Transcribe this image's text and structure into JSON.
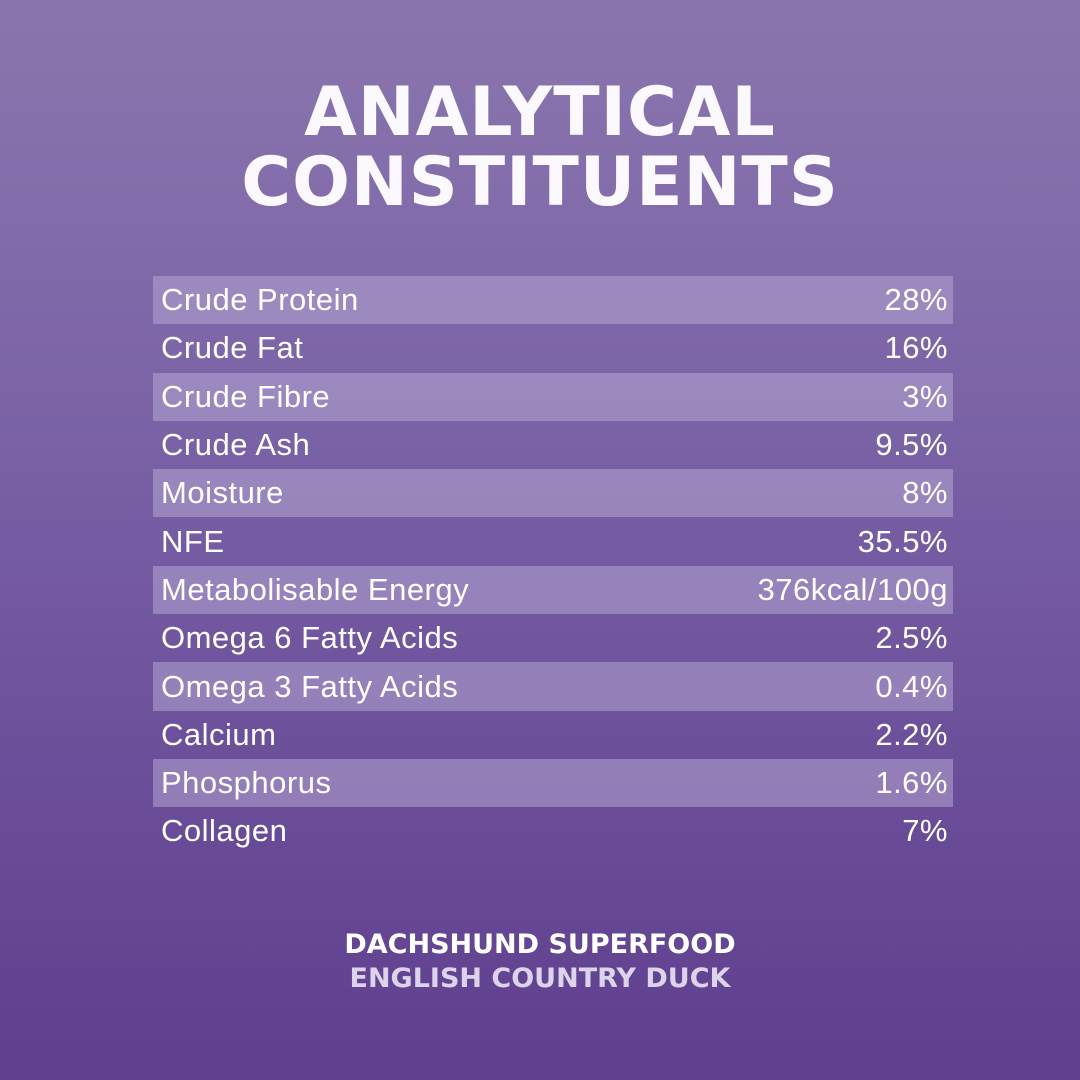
{
  "title": {
    "line1": "ANALYTICAL",
    "line2": "CONSTITUENTS"
  },
  "rows": [
    {
      "label": "Crude Protein",
      "value": "28%"
    },
    {
      "label": "Crude Fat",
      "value": "16%"
    },
    {
      "label": "Crude Fibre",
      "value": "3%"
    },
    {
      "label": "Crude Ash",
      "value": "9.5%"
    },
    {
      "label": "Moisture",
      "value": "8%"
    },
    {
      "label": "NFE",
      "value": "35.5%"
    },
    {
      "label": "Metabolisable Energy",
      "value": "376kcal/100g"
    },
    {
      "label": "Omega 6 Fatty Acids",
      "value": "2.5%"
    },
    {
      "label": "Omega 3 Fatty Acids",
      "value": "0.4%"
    },
    {
      "label": "Calcium",
      "value": "2.2%"
    },
    {
      "label": "Phosphorus",
      "value": "1.6%"
    },
    {
      "label": "Collagen",
      "value": "7%"
    }
  ],
  "footer": {
    "line1": "DACHSHUND SUPERFOOD",
    "line2": "ENGLISH COUNTRY DUCK"
  },
  "colors": {
    "background_top": "#8a76ae",
    "background_bottom": "#5f3f8e",
    "stripe": "#9a87bb",
    "text": "#ffffff"
  }
}
